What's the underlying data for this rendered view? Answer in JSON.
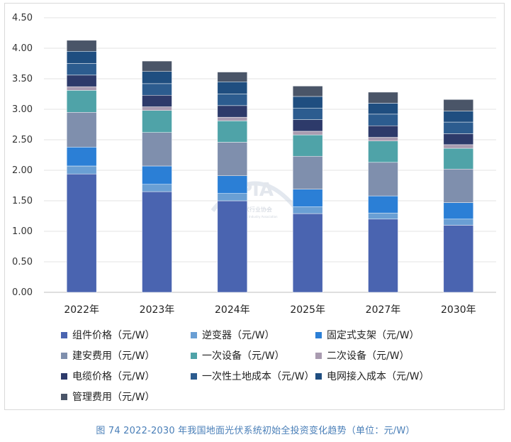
{
  "caption": "图 74   2022-2030 年我国地面光伏系统初始全投资变化趋势（单位：元/W）",
  "watermark": {
    "logo": "CPIA",
    "name": "中国光伏行业协会",
    "sub": "China Photovoltaic Industry Association"
  },
  "chart_data": {
    "type": "bar",
    "stacked": true,
    "title": "",
    "xlabel": "",
    "ylabel": "",
    "ylim": [
      0,
      4.5
    ],
    "yticks": [
      "0.00",
      "0.50",
      "1.00",
      "1.50",
      "2.00",
      "2.50",
      "3.00",
      "3.50",
      "4.00",
      "4.50"
    ],
    "grid": true,
    "legend_position": "bottom",
    "categories": [
      "2022年",
      "2023年",
      "2024年",
      "2025年",
      "2027年",
      "2030年"
    ],
    "series": [
      {
        "name": "组件价格（元/W）",
        "color": "#4a64b0",
        "values": [
          1.94,
          1.65,
          1.5,
          1.29,
          1.2,
          1.1
        ]
      },
      {
        "name": "逆变器（元/W）",
        "color": "#6a9fd4",
        "values": [
          0.13,
          0.12,
          0.12,
          0.11,
          0.1,
          0.1
        ]
      },
      {
        "name": "固定式支架（元/W）",
        "color": "#2b7fd6",
        "values": [
          0.31,
          0.3,
          0.29,
          0.29,
          0.28,
          0.27
        ]
      },
      {
        "name": "建安费用（元/W）",
        "color": "#7f8fad",
        "values": [
          0.57,
          0.55,
          0.55,
          0.54,
          0.55,
          0.55
        ]
      },
      {
        "name": "一次设备（元/W）",
        "color": "#4fa3a8",
        "values": [
          0.36,
          0.36,
          0.35,
          0.35,
          0.35,
          0.34
        ]
      },
      {
        "name": "二次设备（元/W）",
        "color": "#a99bb0",
        "values": [
          0.06,
          0.06,
          0.06,
          0.06,
          0.06,
          0.06
        ]
      },
      {
        "name": "电缆价格（元/W）",
        "color": "#2d3a6a",
        "values": [
          0.19,
          0.19,
          0.19,
          0.19,
          0.19,
          0.18
        ]
      },
      {
        "name": "一次性土地成本（元/W）",
        "color": "#2c5c8f",
        "values": [
          0.19,
          0.19,
          0.19,
          0.19,
          0.19,
          0.19
        ]
      },
      {
        "name": "电网接入成本（元/W）",
        "color": "#1f4e80",
        "values": [
          0.2,
          0.2,
          0.2,
          0.19,
          0.18,
          0.18
        ]
      },
      {
        "name": "管理费用（元/W）",
        "color": "#4a5568",
        "values": [
          0.18,
          0.17,
          0.16,
          0.17,
          0.18,
          0.19
        ]
      }
    ]
  }
}
